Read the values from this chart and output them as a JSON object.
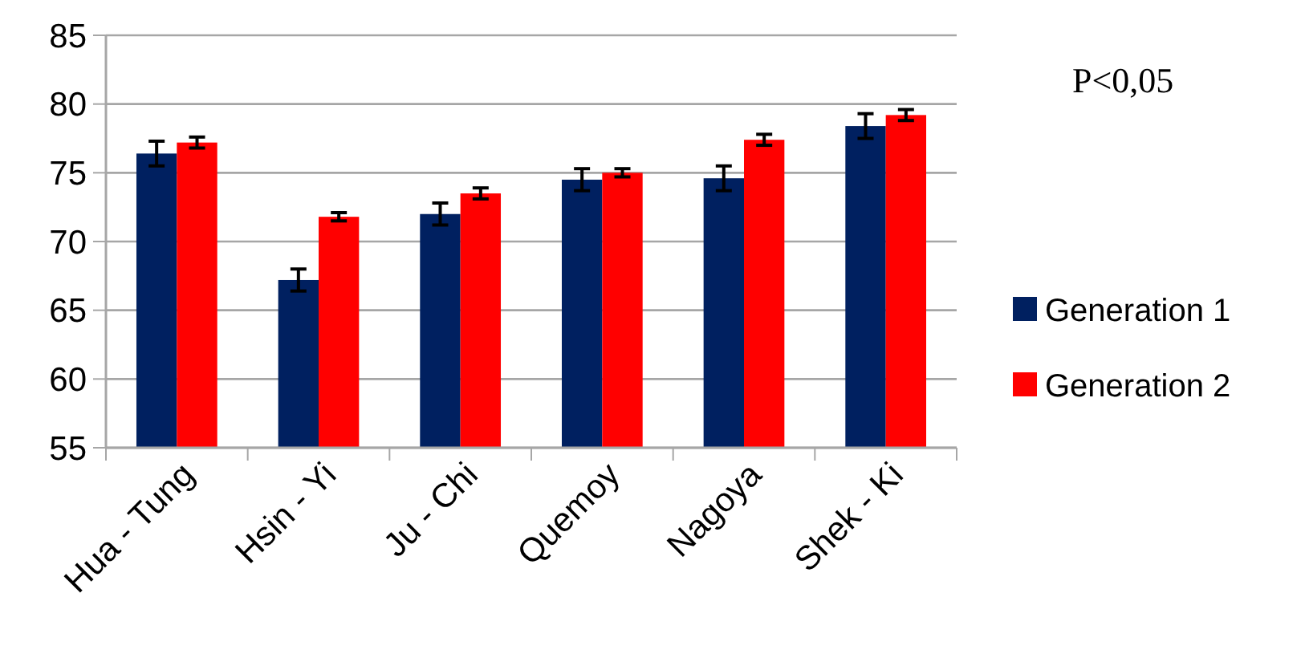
{
  "chart_data": {
    "type": "bar",
    "categories": [
      "Hua - Tung",
      "Hsin - Yi",
      "Ju - Chi",
      "Quemoy",
      "Nagoya",
      "Shek - Ki"
    ],
    "series": [
      {
        "name": "Generation 1",
        "color": "#002060",
        "values": [
          76.4,
          67.2,
          72.0,
          74.5,
          74.6,
          78.4
        ],
        "errors": [
          0.9,
          0.8,
          0.8,
          0.8,
          0.9,
          0.9
        ]
      },
      {
        "name": "Generation 2",
        "color": "#ff0000",
        "values": [
          77.2,
          71.8,
          73.5,
          75.0,
          77.4,
          79.2
        ],
        "errors": [
          0.4,
          0.3,
          0.4,
          0.3,
          0.4,
          0.4
        ]
      }
    ],
    "ylim": [
      55,
      85
    ],
    "yticks": [
      55,
      60,
      65,
      70,
      75,
      80,
      85
    ],
    "grid": "y",
    "legend": "right",
    "annotations": [
      "P<0,05"
    ]
  }
}
